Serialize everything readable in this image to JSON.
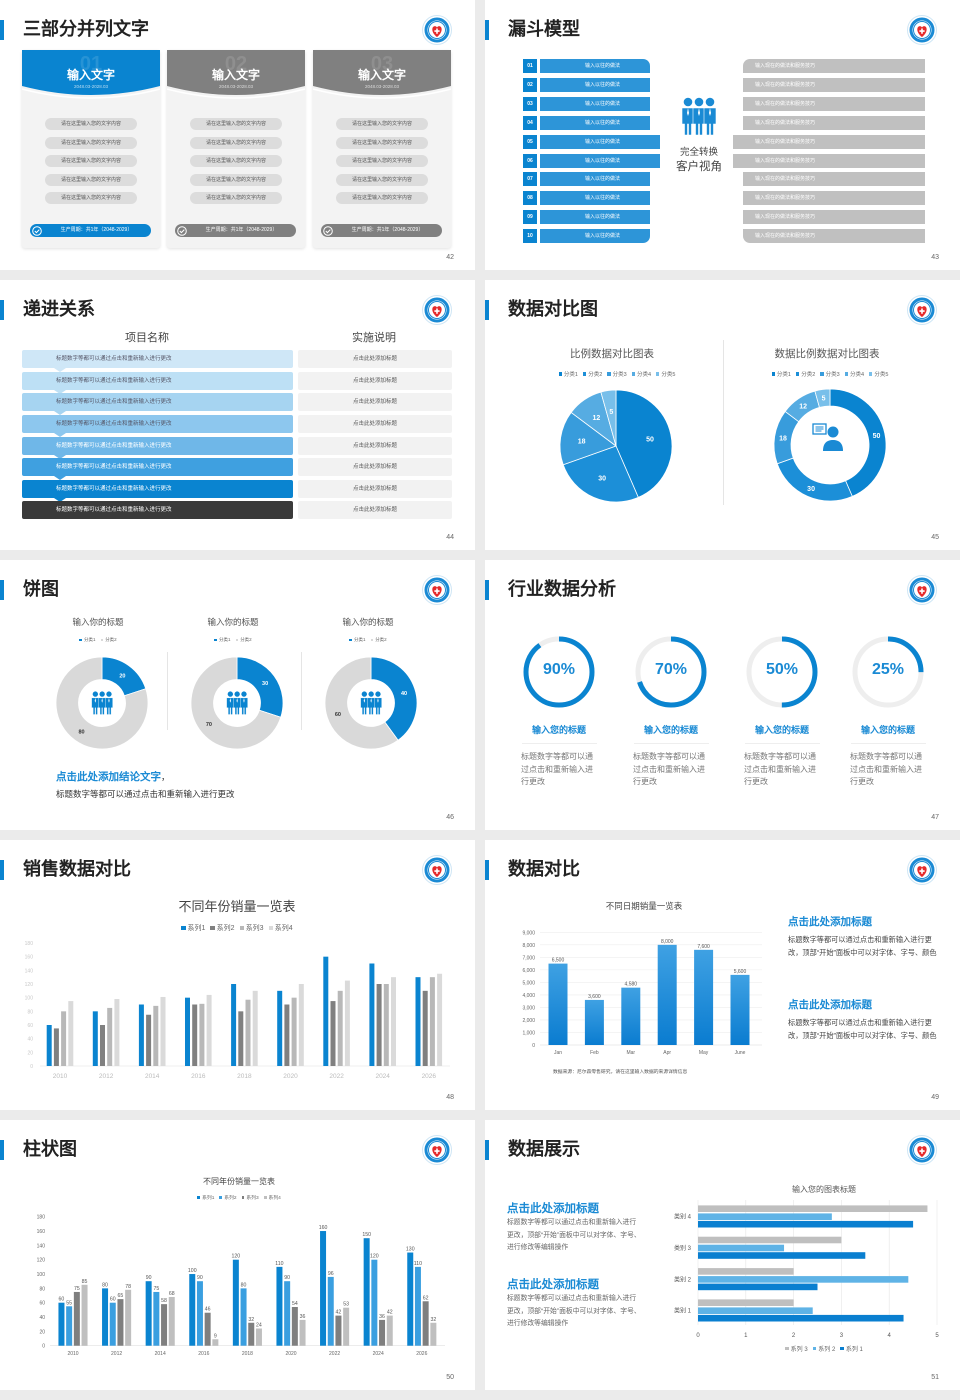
{
  "slides": [
    {
      "title": "三部分并列文字",
      "page": "42",
      "cards": [
        {
          "number": "01",
          "title": "输入文字",
          "date": "2048.03-2028.03",
          "color": "#0a84d0",
          "items": [
            "请在这里输入您的文字内容",
            "请在这里输入您的文字内容",
            "请在这里输入您的文字内容",
            "请在这里输入您的文字内容",
            "请在这里输入您的文字内容"
          ],
          "footer": "生产周期：共1年（2048-2029）"
        },
        {
          "number": "02",
          "title": "输入文字",
          "date": "2048.03-2028.03",
          "color": "#808080",
          "items": [
            "请在这里输入您的文字内容",
            "请在这里输入您的文字内容",
            "请在这里输入您的文字内容",
            "请在这里输入您的文字内容",
            "请在这里输入您的文字内容"
          ],
          "footer": "生产周期：共1年（2048-2029）"
        },
        {
          "number": "03",
          "title": "输入文字",
          "date": "2048.03-2028.03",
          "color": "#808080",
          "items": [
            "请在这里输入您的文字内容",
            "请在这里输入您的文字内容",
            "请在这里输入您的文字内容",
            "请在这里输入您的文字内容",
            "请在这里输入您的文字内容"
          ],
          "footer": "生产周期：共1年（2048-2029）"
        }
      ]
    },
    {
      "title": "漏斗模型",
      "page": "43",
      "rows": [
        {
          "num": "01",
          "left": "输入以往的做法",
          "right": "输入现在的做法和服务技巧"
        },
        {
          "num": "02",
          "left": "输入以往的做法",
          "right": "输入现在的做法和服务技巧"
        },
        {
          "num": "03",
          "left": "输入以往的做法",
          "right": "输入现在的做法和服务技巧"
        },
        {
          "num": "04",
          "left": "输入以往的做法",
          "right": "输入现在的做法和服务技巧"
        },
        {
          "num": "05",
          "left": "输入以往的做法",
          "right": "输入现在的做法和服务技巧"
        },
        {
          "num": "06",
          "left": "输入以往的做法",
          "right": "输入现在的做法和服务技巧"
        },
        {
          "num": "07",
          "left": "输入以往的做法",
          "right": "输入现在的做法和服务技巧"
        },
        {
          "num": "08",
          "left": "输入以往的做法",
          "right": "输入现在的做法和服务技巧"
        },
        {
          "num": "09",
          "left": "输入以往的做法",
          "right": "输入现在的做法和服务技巧"
        },
        {
          "num": "10",
          "left": "输入以往的做法",
          "right": "输入现在的做法和服务技巧"
        }
      ],
      "center": [
        "完全转换",
        "客户视角"
      ],
      "icon": "people-group-icon"
    },
    {
      "title": "递进关系",
      "page": "44",
      "headers": [
        "项目名称",
        "实施说明"
      ],
      "colors": [
        "#cfe7f7",
        "#bde0f5",
        "#a6d4f1",
        "#8dc7ee",
        "#6fb7e8",
        "#3fa0e0",
        "#0a84d0",
        "#3a3a3a"
      ],
      "rows": [
        {
          "left": "标题数字等都可以通过点击和重新输入进行更改",
          "right": "点击此处添加标题"
        },
        {
          "left": "标题数字等都可以通过点击和重新输入进行更改",
          "right": "点击此处添加标题"
        },
        {
          "left": "标题数字等都可以通过点击和重新输入进行更改",
          "right": "点击此处添加标题"
        },
        {
          "left": "标题数字等都可以通过点击和重新输入进行更改",
          "right": "点击此处添加标题"
        },
        {
          "left": "标题数字等都可以通过点击和重新输入进行更改",
          "right": "点击此处添加标题"
        },
        {
          "left": "标题数字等都可以通过点击和重新输入进行更改",
          "right": "点击此处添加标题"
        },
        {
          "left": "标题数字等都可以通过点击和重新输入进行更改",
          "right": "点击此处添加标题"
        },
        {
          "left": "标题数字等都可以通过点击和重新输入进行更改",
          "right": "点击此处添加标题"
        }
      ]
    },
    {
      "title": "数据对比图",
      "page": "45",
      "icon": "customer-service-icon"
    },
    {
      "title": "饼图",
      "page": "46",
      "conclusion_title": "点击此处添加结论文字",
      "conclusion_comma": "，",
      "conclusion_text": "标题数字等都可以通过点击和重新输入进行更改",
      "icon": "people-group-icon"
    },
    {
      "title": "行业数据分析",
      "page": "47",
      "items": [
        {
          "value": 90,
          "label": "90%",
          "title": "输入您的标题",
          "text": "标题数字等都可以通过点击和重新输入进行更改"
        },
        {
          "value": 70,
          "label": "70%",
          "title": "输入您的标题",
          "text": "标题数字等都可以通过点击和重新输入进行更改"
        },
        {
          "value": 50,
          "label": "50%",
          "title": "输入您的标题",
          "text": "标题数字等都可以通过点击和重新输入进行更改"
        },
        {
          "value": 25,
          "label": "25%",
          "title": "输入您的标题",
          "text": "标题数字等都可以通过点击和重新输入进行更改"
        }
      ]
    },
    {
      "title": "销售数据对比",
      "page": "48"
    },
    {
      "title": "数据对比",
      "page": "49",
      "blocks": [
        {
          "heading": "点击此处添加标题",
          "text": "标题数字等都可以通过点击和重新输入进行更改，顶部“开始”面板中可以对字体、字号、颜色"
        },
        {
          "heading": "点击此处添加标题",
          "text": "标题数字等都可以通过点击和重新输入进行更改，顶部“开始”面板中可以对字体、字号、颜色"
        }
      ]
    },
    {
      "title": "柱状图",
      "page": "50"
    },
    {
      "title": "数据展示",
      "page": "51",
      "blocks": [
        {
          "heading": "点击此处添加标题",
          "text": "标题数字等都可以通过点击和重新输入进行更改，顶部“开始”面板中可以对字体、字号、进行修改等编辑操作"
        },
        {
          "heading": "点击此处添加标题",
          "text": "标题数字等都可以通过点击和重新输入进行更改，顶部“开始”面板中可以对字体、字号、进行修改等编辑操作"
        }
      ]
    }
  ],
  "colors": {
    "accent": "#0a84d0",
    "gray": "#808080",
    "light_gray": "#d9d9d9"
  },
  "chart_data": [
    {
      "type": "pie",
      "title": "比例数据对比图表",
      "categories": [
        "分类1",
        "分类2",
        "分类3",
        "分类4",
        "分类5"
      ],
      "values": [
        50,
        30,
        18,
        12,
        5
      ],
      "colors": [
        "#0a84d0",
        "#1c8fd8",
        "#389cdc",
        "#56ace2",
        "#78bfea"
      ],
      "legend": "top"
    },
    {
      "type": "pie",
      "donut": true,
      "title": "数据比例数据对比图表",
      "categories": [
        "分类1",
        "分类2",
        "分类3",
        "分类4",
        "分类5"
      ],
      "values": [
        50,
        30,
        18,
        12,
        5
      ],
      "colors": [
        "#0a84d0",
        "#1c8fd8",
        "#389cdc",
        "#56ace2",
        "#78bfea"
      ],
      "legend": "top"
    },
    {
      "type": "pie",
      "donut": true,
      "title": "输入你的标题",
      "categories": [
        "分类1",
        "分类2"
      ],
      "values": [
        20,
        80
      ],
      "colors": [
        "#0a84d0",
        "#d9d9d9"
      ],
      "legend": "top"
    },
    {
      "type": "pie",
      "donut": true,
      "title": "输入你的标题",
      "categories": [
        "分类1",
        "分类2"
      ],
      "values": [
        30,
        70
      ],
      "colors": [
        "#0a84d0",
        "#d9d9d9"
      ],
      "legend": "top"
    },
    {
      "type": "pie",
      "donut": true,
      "title": "输入你的标题",
      "categories": [
        "分类1",
        "分类2"
      ],
      "values": [
        40,
        60
      ],
      "colors": [
        "#0a84d0",
        "#d9d9d9"
      ],
      "legend": "top"
    },
    {
      "type": "bar",
      "title": "不同年份销量一览表",
      "categories": [
        "2010",
        "2012",
        "2014",
        "2016",
        "2018",
        "2020",
        "2022",
        "2024",
        "2026"
      ],
      "series": [
        {
          "name": "系列1",
          "color": "#0a84d0",
          "values": [
            60,
            80,
            90,
            100,
            120,
            110,
            160,
            150,
            130
          ]
        },
        {
          "name": "系列2",
          "color": "#808080",
          "values": [
            55,
            60,
            75,
            90,
            80,
            90,
            95,
            120,
            110
          ]
        },
        {
          "name": "系列3",
          "color": "#b8b8b8",
          "values": [
            80,
            85,
            88,
            91,
            97,
            100,
            110,
            120,
            130
          ]
        },
        {
          "name": "系列4",
          "color": "#dadada",
          "values": [
            95,
            98,
            101,
            104,
            110,
            120,
            125,
            130,
            135
          ]
        }
      ],
      "ylim": [
        0,
        180
      ],
      "yticks": [
        0,
        20,
        40,
        60,
        80,
        100,
        120,
        140,
        160,
        180
      ],
      "grid": false,
      "legend": "top"
    },
    {
      "type": "bar",
      "title": "不同日期销量一览表",
      "categories": [
        "Jan",
        "Feb",
        "Mar",
        "Apr",
        "May",
        "June"
      ],
      "values": [
        6500,
        3600,
        4580,
        8000,
        7600,
        5600
      ],
      "labels": [
        "6,500",
        "3,600",
        "4,580",
        "8,000",
        "7,600",
        "5,600"
      ],
      "ylim": [
        0,
        9000
      ],
      "yticks": [
        "0",
        "1,000",
        "2,000",
        "3,000",
        "4,000",
        "5,000",
        "6,000",
        "7,000",
        "8,000",
        "9,000"
      ],
      "grid": true,
      "note": "数据来源：尼尔森零售研究，请在这里输入数据的来源详情信息",
      "color": "#0a84d0"
    },
    {
      "type": "bar",
      "title": "不同年份销量一览表",
      "categories": [
        "2010",
        "2012",
        "2014",
        "2016",
        "2018",
        "2020",
        "2022",
        "2024",
        "2026"
      ],
      "series": [
        {
          "name": "系列1",
          "color": "#0a84d0",
          "values": [
            60,
            80,
            90,
            100,
            120,
            110,
            160,
            150,
            130
          ]
        },
        {
          "name": "系列2",
          "color": "#3a9fe0",
          "values": [
            55,
            60,
            75,
            90,
            80,
            90,
            96,
            120,
            110
          ]
        },
        {
          "name": "系列3",
          "color": "#7f7f7f",
          "values": [
            75,
            65,
            58,
            46,
            32,
            54,
            42,
            36,
            62
          ]
        },
        {
          "name": "系列4",
          "color": "#bfbfbf",
          "values": [
            85,
            78,
            68,
            9,
            24,
            36,
            53,
            42,
            32
          ]
        }
      ],
      "ylim": [
        0,
        180
      ],
      "yticks": [
        0,
        20,
        40,
        60,
        80,
        100,
        120,
        140,
        160,
        180
      ],
      "grid": false,
      "legend": "top",
      "data_labels": true
    },
    {
      "type": "bar",
      "orientation": "horizontal",
      "title": "输入您的图表标题",
      "categories": [
        "类别 1",
        "类别 2",
        "类别 3",
        "类别 4"
      ],
      "series": [
        {
          "name": "系列 1",
          "color": "#0a7fd0",
          "values": [
            4.3,
            2.5,
            3.5,
            4.5
          ]
        },
        {
          "name": "系列 2",
          "color": "#5fb3e6",
          "values": [
            2.4,
            4.4,
            1.8,
            2.8
          ]
        },
        {
          "name": "系列 3",
          "color": "#bfbfbf",
          "values": [
            2,
            2,
            3,
            4.8
          ]
        }
      ],
      "xlim": [
        0,
        5
      ],
      "xticks": [
        0,
        1,
        2,
        3,
        4,
        5
      ],
      "grid": true,
      "legend": "bottom",
      "legend_labels": [
        "系列 3",
        "系列 2",
        "系列 1"
      ]
    }
  ]
}
